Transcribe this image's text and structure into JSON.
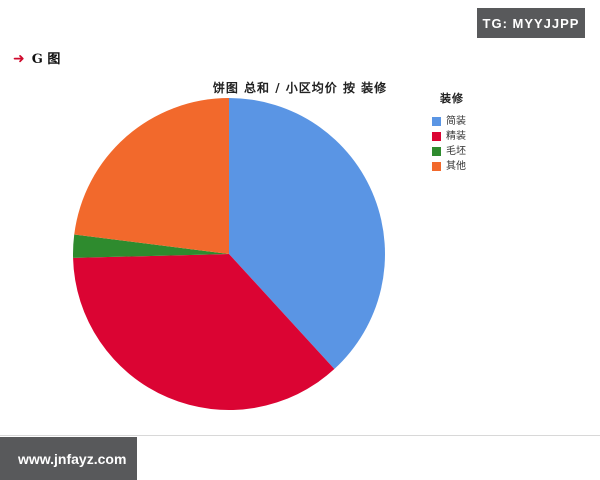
{
  "page": {
    "top_badge_text": "TG: MYYJJPP",
    "corner_label": "G 图",
    "corner_arrow_icon": "arrow-right-icon",
    "footer_badge_text": "www.jnfayz.com",
    "badge_bg_color": "#58595b",
    "accent_red": "#cf0a2c",
    "divider_color": "#d8d8d8"
  },
  "chart_data": {
    "type": "pie",
    "title": "饼图 总和 / 小区均价 按 装修",
    "legend_title": "装修",
    "legend_position": "right",
    "categories": [
      "简装",
      "精装",
      "毛坯",
      "其他"
    ],
    "values": [
      38.2,
      36.4,
      2.4,
      23.0
    ],
    "value_unit": "percent_share_estimated_from_arc_angles",
    "colors": [
      "#5a95e4",
      "#db0433",
      "#2e8b2e",
      "#f2692c"
    ],
    "start_angle_deg": 0,
    "direction": "clockwise"
  }
}
